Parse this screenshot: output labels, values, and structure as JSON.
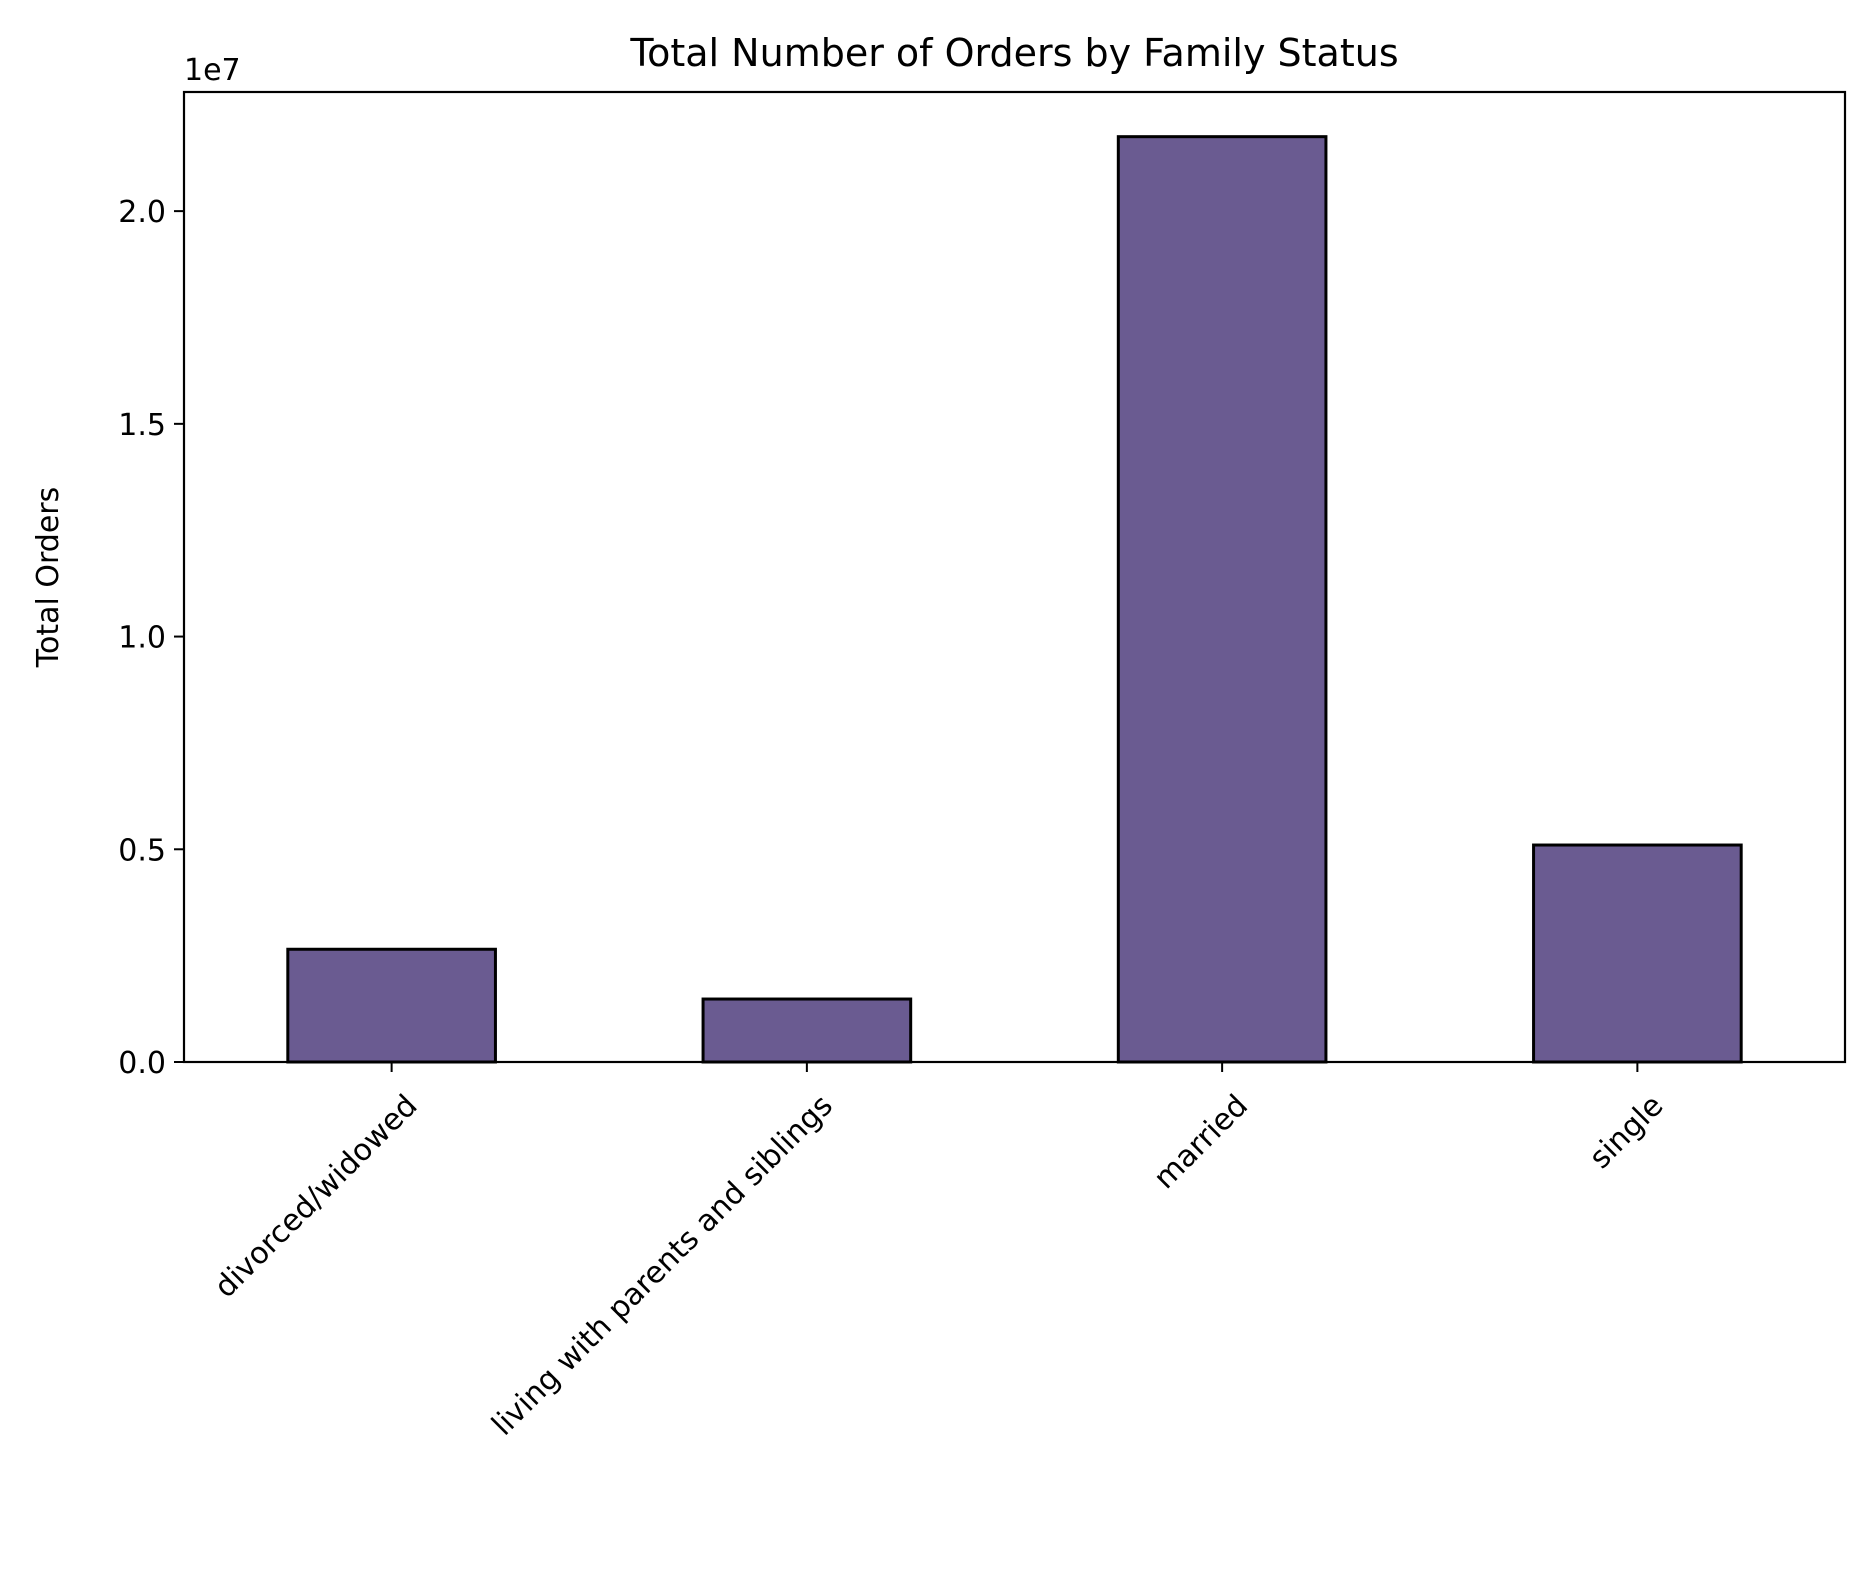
{
  "chart_data": {
    "type": "bar",
    "title": "Total Number of Orders by Family Status",
    "xlabel": "",
    "ylabel": "Total Orders",
    "y_offset_label": "1e7",
    "categories": [
      "divorced/widowed",
      "living with parents and siblings",
      "married",
      "single"
    ],
    "values": [
      2650000,
      1480000,
      21750000,
      5100000
    ],
    "ylim": [
      0,
      22800000
    ],
    "yticks": [
      0,
      5000000,
      10000000,
      15000000,
      20000000
    ],
    "ytick_labels": [
      "0.0",
      "0.5",
      "1.0",
      "1.5",
      "2.0"
    ],
    "bar_color": "#6a5b91",
    "edge_color": "#000000",
    "grid": false,
    "legend": "none",
    "xtick_rotation_deg": 45
  }
}
